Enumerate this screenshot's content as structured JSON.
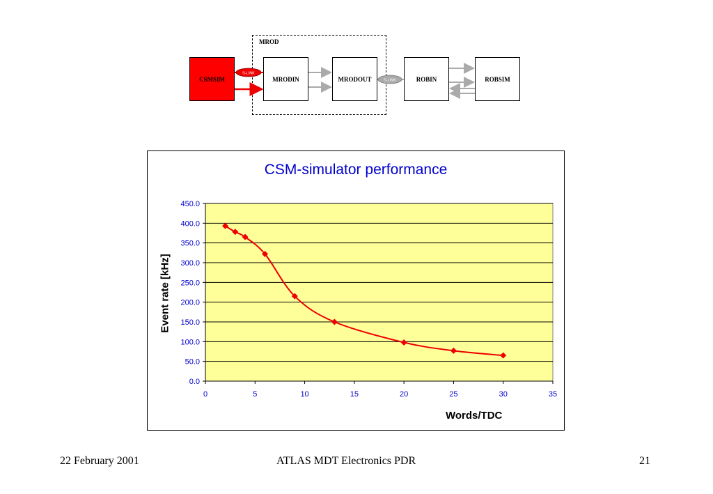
{
  "diagram": {
    "mrod_label": "MROD",
    "boxes": {
      "csmsim": "CSMSIM",
      "mrodin": "MRODIN",
      "mrodout": "MRODOUT",
      "robin": "ROBIN",
      "robsim": "ROBSIM"
    },
    "link_label": "S-LINK"
  },
  "chart_data": {
    "type": "line",
    "title": "CSM-simulator performance",
    "xlabel": "Words/TDC",
    "ylabel": "Event rate [kHz]",
    "xlim": [
      0,
      35
    ],
    "ylim": [
      0,
      450
    ],
    "x_ticks": [
      "0",
      "5",
      "10",
      "15",
      "20",
      "25",
      "30",
      "35"
    ],
    "y_ticks": [
      "0.0",
      "50.0",
      "100.0",
      "150.0",
      "200.0",
      "250.0",
      "300.0",
      "350.0",
      "400.0",
      "450.0"
    ],
    "grid": true,
    "plot_background": "#ffff99",
    "series": [
      {
        "color": "#ee0000",
        "x": [
          2,
          3,
          4,
          6,
          9,
          13,
          20,
          25,
          30
        ],
        "y": [
          393,
          378,
          365,
          322,
          215,
          150,
          98,
          77,
          65
        ]
      }
    ]
  },
  "footer": {
    "date": "22 February 2001",
    "center": "ATLAS MDT Electronics PDR",
    "page": "21"
  }
}
